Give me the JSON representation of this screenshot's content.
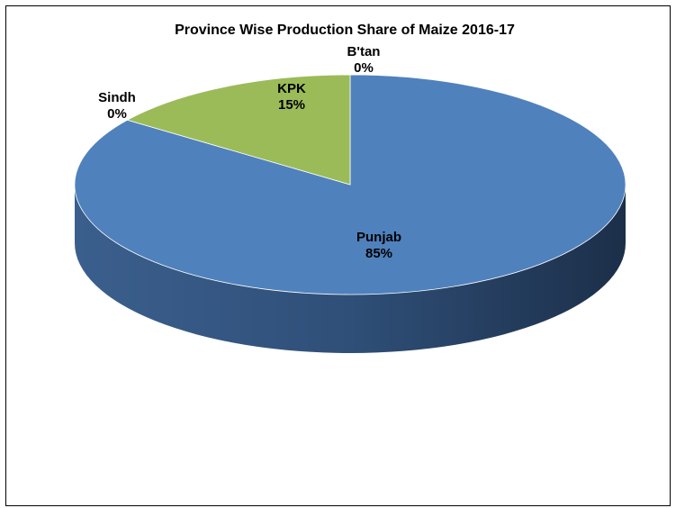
{
  "chart_data": {
    "type": "pie",
    "title": "Province Wise Production Share of Maize 2016-17",
    "categories": [
      "Punjab",
      "Sindh",
      "KPK",
      "B'tan"
    ],
    "values": [
      85,
      0,
      15,
      0
    ],
    "labels": [
      "85%",
      "0%",
      "15%",
      "0%"
    ],
    "colors": [
      "#4f81bd",
      "#4f81bd",
      "#9bbb59",
      "#4f81bd"
    ],
    "legend": "none",
    "style": "3d"
  }
}
